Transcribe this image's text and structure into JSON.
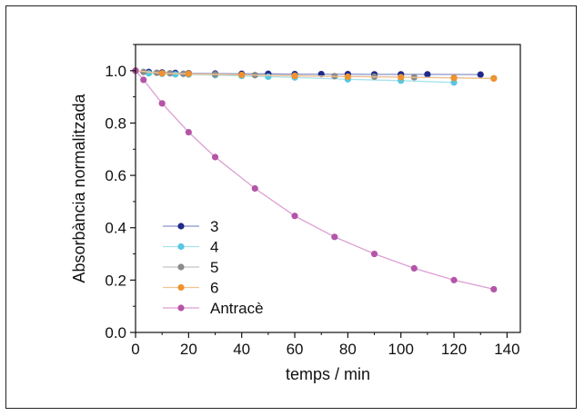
{
  "chart_data": {
    "type": "line",
    "title": "",
    "xlabel": "temps / min",
    "ylabel": "Absorbància normalitzada",
    "xlim": [
      0,
      145
    ],
    "ylim": [
      0.0,
      1.1
    ],
    "x_ticks": [
      0,
      20,
      40,
      60,
      80,
      100,
      120,
      140
    ],
    "y_ticks": [
      0.0,
      0.2,
      0.4,
      0.6,
      0.8,
      1.0
    ],
    "x_tick_labels": [
      "0",
      "20",
      "40",
      "60",
      "80",
      "100",
      "120",
      "140"
    ],
    "y_tick_labels": [
      "0.0",
      "0.2",
      "0.4",
      "0.6",
      "0.8",
      "1.0"
    ],
    "grid": false,
    "legend_position": "bottom-left",
    "series": [
      {
        "name": "3",
        "marker_color": "#1f2a8c",
        "line_color": "#8b93c9",
        "x": [
          0,
          5,
          10,
          15,
          20,
          30,
          40,
          50,
          60,
          70,
          80,
          90,
          100,
          110,
          130
        ],
        "y": [
          1.0,
          0.995,
          0.993,
          0.991,
          0.99,
          0.989,
          0.988,
          0.988,
          0.987,
          0.987,
          0.987,
          0.986,
          0.986,
          0.986,
          0.985
        ]
      },
      {
        "name": "4",
        "marker_color": "#55c8e0",
        "line_color": "#a8e2ee",
        "x": [
          0,
          5,
          10,
          15,
          20,
          30,
          40,
          50,
          60,
          80,
          100,
          120
        ],
        "y": [
          1.0,
          0.99,
          0.988,
          0.986,
          0.985,
          0.983,
          0.98,
          0.977,
          0.974,
          0.967,
          0.962,
          0.955
        ]
      },
      {
        "name": "5",
        "marker_color": "#8a8a8a",
        "line_color": "#c4c4c4",
        "x": [
          0,
          3,
          8,
          13,
          18,
          30,
          45,
          60,
          75,
          90,
          105,
          120,
          135
        ],
        "y": [
          1.0,
          0.995,
          0.992,
          0.99,
          0.988,
          0.986,
          0.983,
          0.981,
          0.979,
          0.977,
          0.975,
          0.973,
          0.971
        ]
      },
      {
        "name": "6",
        "marker_color": "#f0922e",
        "line_color": "#f4c391",
        "x": [
          0,
          10,
          20,
          40,
          60,
          80,
          100,
          120,
          135
        ],
        "y": [
          1.0,
          0.99,
          0.988,
          0.984,
          0.98,
          0.977,
          0.975,
          0.972,
          0.97
        ]
      },
      {
        "name": "Antracè",
        "marker_color": "#b455a8",
        "line_color": "#dc9fd4",
        "x": [
          0,
          3,
          10,
          20,
          30,
          45,
          60,
          75,
          90,
          105,
          120,
          135
        ],
        "y": [
          1.0,
          0.965,
          0.875,
          0.765,
          0.67,
          0.55,
          0.445,
          0.365,
          0.3,
          0.245,
          0.2,
          0.165
        ]
      }
    ]
  }
}
